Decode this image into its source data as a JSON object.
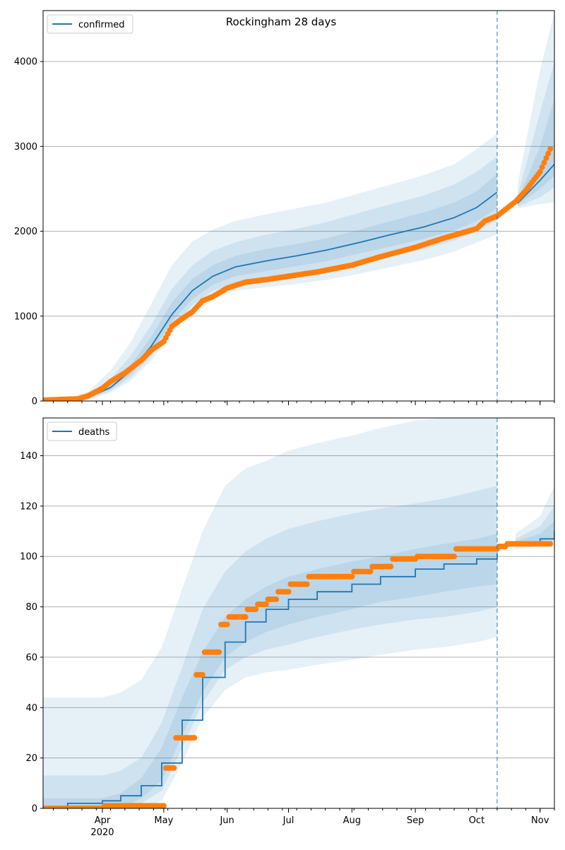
{
  "colors": {
    "model": "#1f77b4",
    "observed": "#ff7f0e",
    "band": "#1f77b4",
    "grid": "#b0b0b0",
    "forecast_line": "#1f77b4"
  },
  "chart_data": [
    {
      "type": "line",
      "title": "Rockingham 28 days",
      "legend": "top-left",
      "legend_label": "confirmed",
      "xlim": [
        "2020-03-03",
        "2020-11-08"
      ],
      "ylim": [
        0,
        4600
      ],
      "yticks": [
        0,
        1000,
        2000,
        3000,
        4000
      ],
      "grid": "horizontal",
      "forecast_start": "2020-10-11",
      "model_median": {
        "x": [
          "2020-03-03",
          "2020-03-15",
          "2020-03-25",
          "2020-04-05",
          "2020-04-15",
          "2020-04-25",
          "2020-05-05",
          "2020-05-15",
          "2020-05-25",
          "2020-06-05",
          "2020-06-20",
          "2020-07-05",
          "2020-07-20",
          "2020-08-05",
          "2020-08-20",
          "2020-09-05",
          "2020-09-20",
          "2020-10-01",
          "2020-10-11",
          "2020-10-21",
          "2020-11-01",
          "2020-11-08"
        ],
        "y": [
          0,
          5,
          40,
          160,
          360,
          650,
          1020,
          1300,
          1470,
          1580,
          1650,
          1710,
          1780,
          1870,
          1960,
          2050,
          2160,
          2280,
          2460,
          2330,
          2600,
          2790
        ]
      },
      "bands": [
        {
          "lower": [
            0,
            0,
            10,
            100,
            240,
            480,
            800,
            1050,
            1220,
            1300,
            1340,
            1380,
            1430,
            1500,
            1580,
            1660,
            1760,
            1870,
            1960,
            2270,
            2320,
            2340
          ],
          "upper": [
            0,
            30,
            110,
            360,
            700,
            1150,
            1600,
            1880,
            2020,
            2120,
            2200,
            2270,
            2340,
            2450,
            2550,
            2660,
            2790,
            2970,
            3150,
            2550,
            3900,
            4580
          ]
        },
        {
          "lower": [
            0,
            0,
            20,
            120,
            280,
            530,
            870,
            1130,
            1300,
            1390,
            1440,
            1490,
            1550,
            1630,
            1710,
            1790,
            1890,
            2000,
            2130,
            2290,
            2400,
            2520
          ],
          "upper": [
            0,
            15,
            80,
            260,
            540,
            900,
            1320,
            1600,
            1770,
            1870,
            1960,
            2030,
            2110,
            2220,
            2320,
            2420,
            2550,
            2700,
            2880,
            2420,
            3400,
            4000
          ]
        },
        {
          "lower": [
            0,
            0,
            30,
            140,
            320,
            580,
            940,
            1200,
            1370,
            1470,
            1530,
            1590,
            1650,
            1740,
            1820,
            1910,
            2010,
            2120,
            2270,
            2310,
            2500,
            2650
          ],
          "upper": [
            0,
            10,
            60,
            200,
            430,
            760,
            1160,
            1440,
            1600,
            1710,
            1790,
            1850,
            1920,
            2020,
            2120,
            2220,
            2340,
            2470,
            2680,
            2370,
            3000,
            3560
          ]
        }
      ],
      "observed": {
        "x": [
          "2020-03-03",
          "2020-03-20",
          "2020-03-25",
          "2020-04-01",
          "2020-04-05",
          "2020-04-12",
          "2020-04-20",
          "2020-04-25",
          "2020-05-01",
          "2020-05-05",
          "2020-05-10",
          "2020-05-15",
          "2020-05-20",
          "2020-05-25",
          "2020-06-01",
          "2020-06-10",
          "2020-06-20",
          "2020-07-01",
          "2020-07-15",
          "2020-08-01",
          "2020-08-15",
          "2020-09-01",
          "2020-09-15",
          "2020-10-01",
          "2020-10-05",
          "2020-10-11",
          "2020-10-20",
          "2020-10-25",
          "2020-11-01",
          "2020-11-06"
        ],
        "y": [
          10,
          25,
          60,
          150,
          230,
          330,
          480,
          600,
          700,
          880,
          970,
          1050,
          1180,
          1230,
          1330,
          1400,
          1430,
          1470,
          1520,
          1600,
          1700,
          1810,
          1920,
          2030,
          2120,
          2180,
          2350,
          2480,
          2700,
          2970
        ]
      }
    },
    {
      "type": "line",
      "legend": "top-left",
      "legend_label": "deaths",
      "xlim": [
        "2020-03-03",
        "2020-11-08"
      ],
      "ylim": [
        0,
        155
      ],
      "yticks": [
        0,
        20,
        40,
        60,
        80,
        100,
        120,
        140
      ],
      "grid": "horizontal",
      "forecast_start": "2020-10-11",
      "xticks": [
        "2020-04-01",
        "2020-05-01",
        "2020-06-01",
        "2020-07-01",
        "2020-08-01",
        "2020-09-01",
        "2020-10-01",
        "2020-11-01"
      ],
      "xtick_labels": [
        "Apr",
        "May",
        "Jun",
        "Jul",
        "Aug",
        "Sep",
        "Oct",
        "Nov"
      ],
      "year_label": "2020",
      "model_median": {
        "x": [
          "2020-03-03",
          "2020-03-15",
          "2020-04-01",
          "2020-04-10",
          "2020-04-20",
          "2020-04-30",
          "2020-05-10",
          "2020-05-20",
          "2020-05-31",
          "2020-06-10",
          "2020-06-20",
          "2020-07-01",
          "2020-07-15",
          "2020-08-01",
          "2020-08-15",
          "2020-09-01",
          "2020-09-15",
          "2020-10-01",
          "2020-10-11",
          "2020-10-20",
          "2020-11-01",
          "2020-11-08"
        ],
        "y": [
          0,
          2,
          3,
          5,
          9,
          18,
          35,
          52,
          66,
          74,
          79,
          83,
          86,
          89,
          92,
          95,
          97,
          99,
          101,
          105,
          107,
          110
        ]
      },
      "bands": [
        {
          "lower": [
            0,
            0,
            0,
            0,
            0,
            3,
            18,
            36,
            47,
            52,
            54,
            55,
            57,
            59,
            61,
            63,
            64,
            66,
            68,
            103,
            104,
            104
          ],
          "upper": [
            44,
            44,
            44,
            46,
            51,
            64,
            87,
            110,
            128,
            135,
            138,
            142,
            145,
            148,
            151,
            154,
            155,
            155,
            155,
            109,
            116,
            128
          ]
        },
        {
          "lower": [
            0,
            0,
            0,
            0,
            2,
            7,
            24,
            42,
            55,
            60,
            63,
            65,
            68,
            71,
            73,
            75,
            76,
            78,
            80,
            104,
            105,
            106
          ],
          "upper": [
            13,
            13,
            13,
            15,
            20,
            34,
            56,
            79,
            94,
            102,
            107,
            111,
            114,
            117,
            119,
            121,
            123,
            126,
            128,
            107,
            112,
            120
          ]
        },
        {
          "lower": [
            0,
            0,
            0,
            0,
            4,
            11,
            29,
            46,
            60,
            66,
            70,
            73,
            76,
            79,
            82,
            84,
            86,
            88,
            89,
            104,
            106,
            107
          ],
          "upper": [
            4,
            4,
            4,
            6,
            12,
            24,
            44,
            62,
            76,
            83,
            88,
            92,
            95,
            98,
            100,
            103,
            105,
            107,
            109,
            106,
            109,
            114
          ]
        }
      ],
      "observed": {
        "x": [
          "2020-03-03",
          "2020-04-01",
          "2020-04-30",
          "2020-05-01",
          "2020-05-06",
          "2020-05-11",
          "2020-05-16",
          "2020-05-20",
          "2020-05-28",
          "2020-06-01",
          "2020-06-10",
          "2020-06-15",
          "2020-06-20",
          "2020-06-25",
          "2020-07-01",
          "2020-07-10",
          "2020-07-25",
          "2020-08-01",
          "2020-08-10",
          "2020-08-20",
          "2020-09-01",
          "2020-09-10",
          "2020-09-20",
          "2020-10-01",
          "2020-10-11",
          "2020-10-15",
          "2020-11-01",
          "2020-11-06"
        ],
        "y": [
          0,
          1,
          1,
          16,
          28,
          28,
          53,
          62,
          73,
          76,
          79,
          81,
          83,
          86,
          89,
          92,
          92,
          94,
          96,
          99,
          100,
          100,
          103,
          103,
          104,
          105,
          105,
          105
        ]
      }
    }
  ]
}
